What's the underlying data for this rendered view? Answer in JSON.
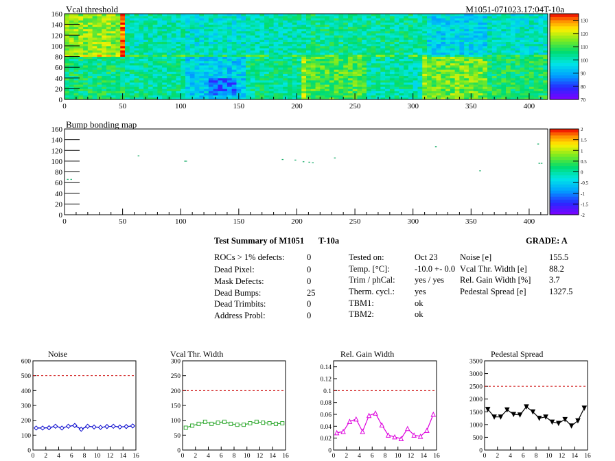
{
  "chart_data": [
    {
      "type": "heatmap",
      "title": "Vcal threshold",
      "id_label": "M1051-071023.17:04T-10a",
      "xlim": [
        0,
        416
      ],
      "ylim": [
        0,
        160
      ],
      "x_ticks": [
        "0",
        "50",
        "100",
        "150",
        "200",
        "250",
        "300",
        "350",
        "400"
      ],
      "y_ticks": [
        "0",
        "20",
        "40",
        "60",
        "80",
        "100",
        "120",
        "140",
        "160"
      ],
      "z_ticks": [
        "70",
        "80",
        "90",
        "100",
        "110",
        "120",
        "130"
      ],
      "zlim": [
        70,
        135
      ],
      "block_means": {
        "top": [
          116,
          101,
          99,
          101,
          104,
          103,
          95,
          99
        ],
        "bottom": [
          106,
          103,
          94,
          104,
          111,
          102,
          114,
          107
        ]
      }
    },
    {
      "type": "heatmap",
      "title": "Bump bonding map",
      "xlim": [
        0,
        416
      ],
      "ylim": [
        0,
        160
      ],
      "x_ticks": [
        "0",
        "50",
        "100",
        "150",
        "200",
        "250",
        "300",
        "350",
        "400"
      ],
      "y_ticks": [
        "0",
        "20",
        "40",
        "60",
        "80",
        "100",
        "120",
        "140",
        "160"
      ],
      "z_ticks": [
        "-2",
        "-1.5",
        "-1",
        "-0.5",
        "0",
        "0.5",
        "1",
        "1.5",
        "2"
      ],
      "zlim": [
        -2,
        2
      ],
      "points": [
        [
          2,
          66
        ],
        [
          5,
          66
        ],
        [
          63,
          110
        ],
        [
          103,
          100
        ],
        [
          104,
          100
        ],
        [
          187,
          103
        ],
        [
          198,
          102
        ],
        [
          205,
          99
        ],
        [
          210,
          98
        ],
        [
          213,
          97
        ],
        [
          232,
          106
        ],
        [
          319,
          127
        ],
        [
          357,
          82
        ],
        [
          407,
          132
        ],
        [
          408,
          96
        ],
        [
          410,
          96
        ]
      ]
    },
    {
      "type": "line",
      "title": "Noise",
      "x": [
        0,
        1,
        2,
        3,
        4,
        5,
        6,
        7,
        8,
        9,
        10,
        11,
        12,
        13,
        14,
        15
      ],
      "series": [
        {
          "values": [
            148,
            148,
            150,
            160,
            148,
            160,
            165,
            140,
            160,
            155,
            152,
            158,
            160,
            155,
            158,
            162
          ]
        }
      ],
      "threshold": 500,
      "xlim": [
        0,
        16
      ],
      "ylim": [
        0,
        600
      ],
      "x_ticks": [
        "0",
        "2",
        "4",
        "6",
        "8",
        "10",
        "12",
        "14",
        "16"
      ],
      "y_ticks": [
        "0",
        "100",
        "200",
        "300",
        "400",
        "500",
        "600"
      ],
      "color": "#0000cc"
    },
    {
      "type": "line",
      "title": "Vcal Thr. Width",
      "x": [
        0,
        1,
        2,
        3,
        4,
        5,
        6,
        7,
        8,
        9,
        10,
        11,
        12,
        13,
        14,
        15
      ],
      "series": [
        {
          "values": [
            75,
            82,
            88,
            95,
            88,
            92,
            95,
            88,
            85,
            85,
            90,
            95,
            92,
            90,
            88,
            90
          ]
        }
      ],
      "threshold": 200,
      "xlim": [
        0,
        16
      ],
      "ylim": [
        0,
        300
      ],
      "x_ticks": [
        "0",
        "2",
        "4",
        "6",
        "8",
        "10",
        "12",
        "14",
        "16"
      ],
      "y_ticks": [
        "0",
        "50",
        "100",
        "150",
        "200",
        "250",
        "300"
      ],
      "color": "#33aa33"
    },
    {
      "type": "line",
      "title": "Rel. Gain Width",
      "x": [
        0,
        1,
        2,
        3,
        4,
        5,
        6,
        7,
        8,
        9,
        10,
        11,
        12,
        13,
        14,
        15
      ],
      "series": [
        {
          "values": [
            0.029,
            0.031,
            0.048,
            0.052,
            0.031,
            0.058,
            0.062,
            0.042,
            0.025,
            0.022,
            0.019,
            0.036,
            0.025,
            0.023,
            0.033,
            0.06
          ]
        }
      ],
      "threshold": 0.1,
      "xlim": [
        0,
        16
      ],
      "ylim": [
        0,
        0.15
      ],
      "x_ticks": [
        "0",
        "2",
        "4",
        "6",
        "8",
        "10",
        "12",
        "14",
        "16"
      ],
      "y_ticks": [
        "0",
        "0.02",
        "0.04",
        "0.06",
        "0.08",
        "0.1",
        "0.12",
        "0.14"
      ],
      "color": "#dd00dd"
    },
    {
      "type": "line",
      "title": "Pedestal Spread",
      "x": [
        0,
        1,
        2,
        3,
        4,
        5,
        6,
        7,
        8,
        9,
        10,
        11,
        12,
        13,
        14,
        15
      ],
      "series": [
        {
          "values": [
            1600,
            1300,
            1300,
            1580,
            1400,
            1380,
            1700,
            1500,
            1250,
            1300,
            1100,
            1050,
            1200,
            950,
            1150,
            1650
          ]
        }
      ],
      "threshold": 2500,
      "xlim": [
        0,
        16
      ],
      "ylim": [
        0,
        3500
      ],
      "x_ticks": [
        "0",
        "2",
        "4",
        "6",
        "8",
        "10",
        "12",
        "14",
        "16"
      ],
      "y_ticks": [
        "0",
        "500",
        "1000",
        "1500",
        "2000",
        "2500",
        "3000",
        "3500"
      ],
      "color": "#000000"
    }
  ],
  "summary": {
    "title": "Test Summary of M1051",
    "temp_label": "T-10a",
    "grade": "GRADE:  A",
    "left": [
      {
        "label": "ROCs > 1% defects:",
        "value": "0"
      },
      {
        "label": "Dead Pixel:",
        "value": "0"
      },
      {
        "label": "Mask Defects:",
        "value": "0"
      },
      {
        "label": "Dead Bumps:",
        "value": "25"
      },
      {
        "label": "Dead Trimbits:",
        "value": "0"
      },
      {
        "label": "Address Probl:",
        "value": "0"
      }
    ],
    "middle": [
      {
        "label": "Tested on:",
        "value": "Oct 23"
      },
      {
        "label": "Temp. [°C]:",
        "value": "-10.0 +- 0.0"
      },
      {
        "label": "Trim / phCal:",
        "value": "yes / yes"
      },
      {
        "label": "Therm. cycl.:",
        "value": "yes"
      },
      {
        "label": "TBM1:",
        "value": "ok"
      },
      {
        "label": "TBM2:",
        "value": "ok"
      }
    ],
    "right": [
      {
        "label": "Noise [e]",
        "value": "155.5"
      },
      {
        "label": "Vcal Thr. Width [e]",
        "value": "88.2"
      },
      {
        "label": "Rel. Gain Width [%]",
        "value": "3.7"
      },
      {
        "label": "Pedestal Spread [e]",
        "value": "1327.5"
      }
    ]
  }
}
